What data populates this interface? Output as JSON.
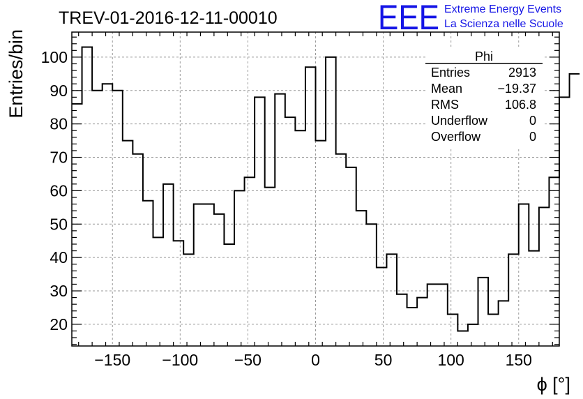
{
  "header": {
    "title": "TREV-01-2016-12-11-00010",
    "logo_text": "EEE",
    "logo_line1": "Extreme Energy Events",
    "logo_line2": "La Scienza nelle Scuole",
    "logo_color": "#1515e6"
  },
  "stats": {
    "name": "Phi",
    "rows": [
      {
        "label": "Entries",
        "value": "2913"
      },
      {
        "label": "Mean",
        "value": "−19.37"
      },
      {
        "label": "RMS",
        "value": "106.8"
      },
      {
        "label": "Underflow",
        "value": "0"
      },
      {
        "label": "Overflow",
        "value": "0"
      }
    ]
  },
  "chart_data": {
    "type": "bar",
    "subtype": "step-histogram",
    "title": "TREV-01-2016-12-11-00010",
    "xlabel": "ϕ [°]",
    "ylabel": "Entries/bin",
    "xlim": [
      -180,
      180
    ],
    "ylim": [
      13.5,
      107.5
    ],
    "bin_width": 7.5,
    "bin_start": -180,
    "values": [
      86,
      103,
      90,
      92,
      90,
      75,
      71,
      57,
      46,
      62,
      45,
      41,
      56,
      56,
      53,
      44,
      60,
      64,
      88,
      61,
      89,
      82,
      78,
      97,
      75,
      100,
      71,
      67,
      54,
      50,
      37,
      41,
      29,
      25,
      28,
      32,
      32,
      23,
      18,
      20,
      34,
      23,
      27,
      41,
      56,
      42,
      55,
      64,
      88,
      95
    ],
    "x_ticks": [
      -150,
      -100,
      -50,
      0,
      50,
      100,
      150
    ],
    "x_tick_labels": [
      "−150",
      "−100",
      "−50",
      "0",
      "50",
      "100",
      "150"
    ],
    "y_ticks": [
      20,
      30,
      40,
      50,
      60,
      70,
      80,
      90,
      100
    ],
    "y_tick_labels": [
      "20",
      "30",
      "40",
      "50",
      "60",
      "70",
      "80",
      "90",
      "100"
    ],
    "grid": true,
    "line_color": "#000000",
    "stats_box_position": "top-right"
  }
}
